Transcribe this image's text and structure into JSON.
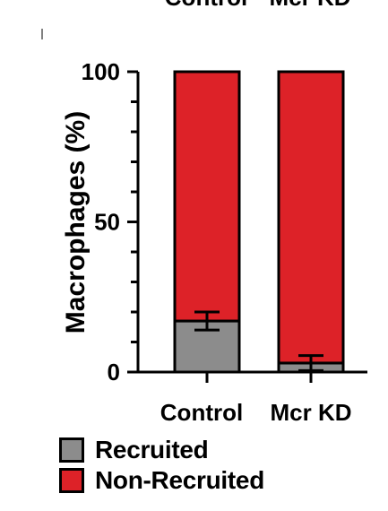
{
  "chart_data": {
    "type": "bar",
    "stacked": true,
    "categories": [
      "Control",
      "Mcr KD"
    ],
    "top_labels": [
      "Control",
      "Mcr KD"
    ],
    "ylabel": "Macrophages (%)",
    "ylim": [
      0,
      100
    ],
    "yticks": [
      0,
      50,
      100
    ],
    "series": [
      {
        "name": "Recruited",
        "color": "#8c8c8c",
        "values": [
          17,
          3
        ],
        "errors": [
          3,
          2.5
        ]
      },
      {
        "name": "Non-Recruited",
        "color": "#dd2228",
        "values": [
          83,
          97
        ]
      }
    ],
    "legend_position": "bottom-left"
  }
}
